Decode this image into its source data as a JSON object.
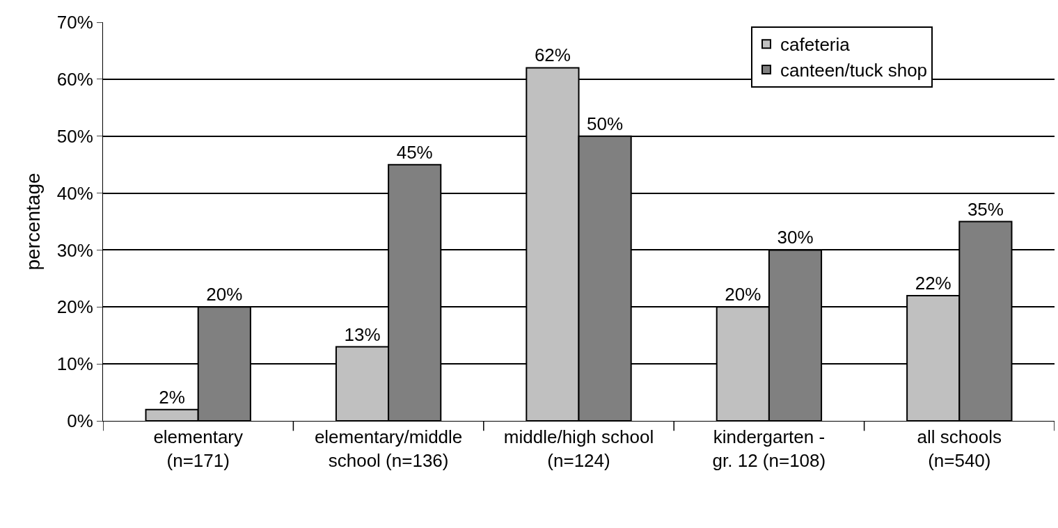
{
  "chart_data": {
    "type": "bar",
    "ylabel": "percentage",
    "categories": [
      "elementary\n(n=171)",
      "elementary/middle\nschool (n=136)",
      "middle/high school\n(n=124)",
      "kindergarten -\ngr. 12 (n=108)",
      "all schools\n(n=540)"
    ],
    "series": [
      {
        "name": "cafeteria",
        "color": "#c0c0c0",
        "values": [
          2,
          13,
          62,
          20,
          22
        ],
        "value_labels": [
          "2%",
          "13%",
          "62%",
          "20%",
          "22%"
        ]
      },
      {
        "name": "canteen/tuck shop",
        "color": "#808080",
        "values": [
          20,
          45,
          50,
          30,
          35
        ],
        "value_labels": [
          "20%",
          "45%",
          "50%",
          "30%",
          "35%"
        ]
      }
    ],
    "ylim": [
      0,
      70
    ],
    "yticks": [
      {
        "value": 0,
        "label": "0%"
      },
      {
        "value": 10,
        "label": "10%"
      },
      {
        "value": 20,
        "label": "20%"
      },
      {
        "value": 30,
        "label": "30%"
      },
      {
        "value": 40,
        "label": "40%"
      },
      {
        "value": 50,
        "label": "50%"
      },
      {
        "value": 60,
        "label": "60%"
      },
      {
        "value": 70,
        "label": "70%"
      }
    ],
    "grid": "y",
    "legend": "top right"
  }
}
